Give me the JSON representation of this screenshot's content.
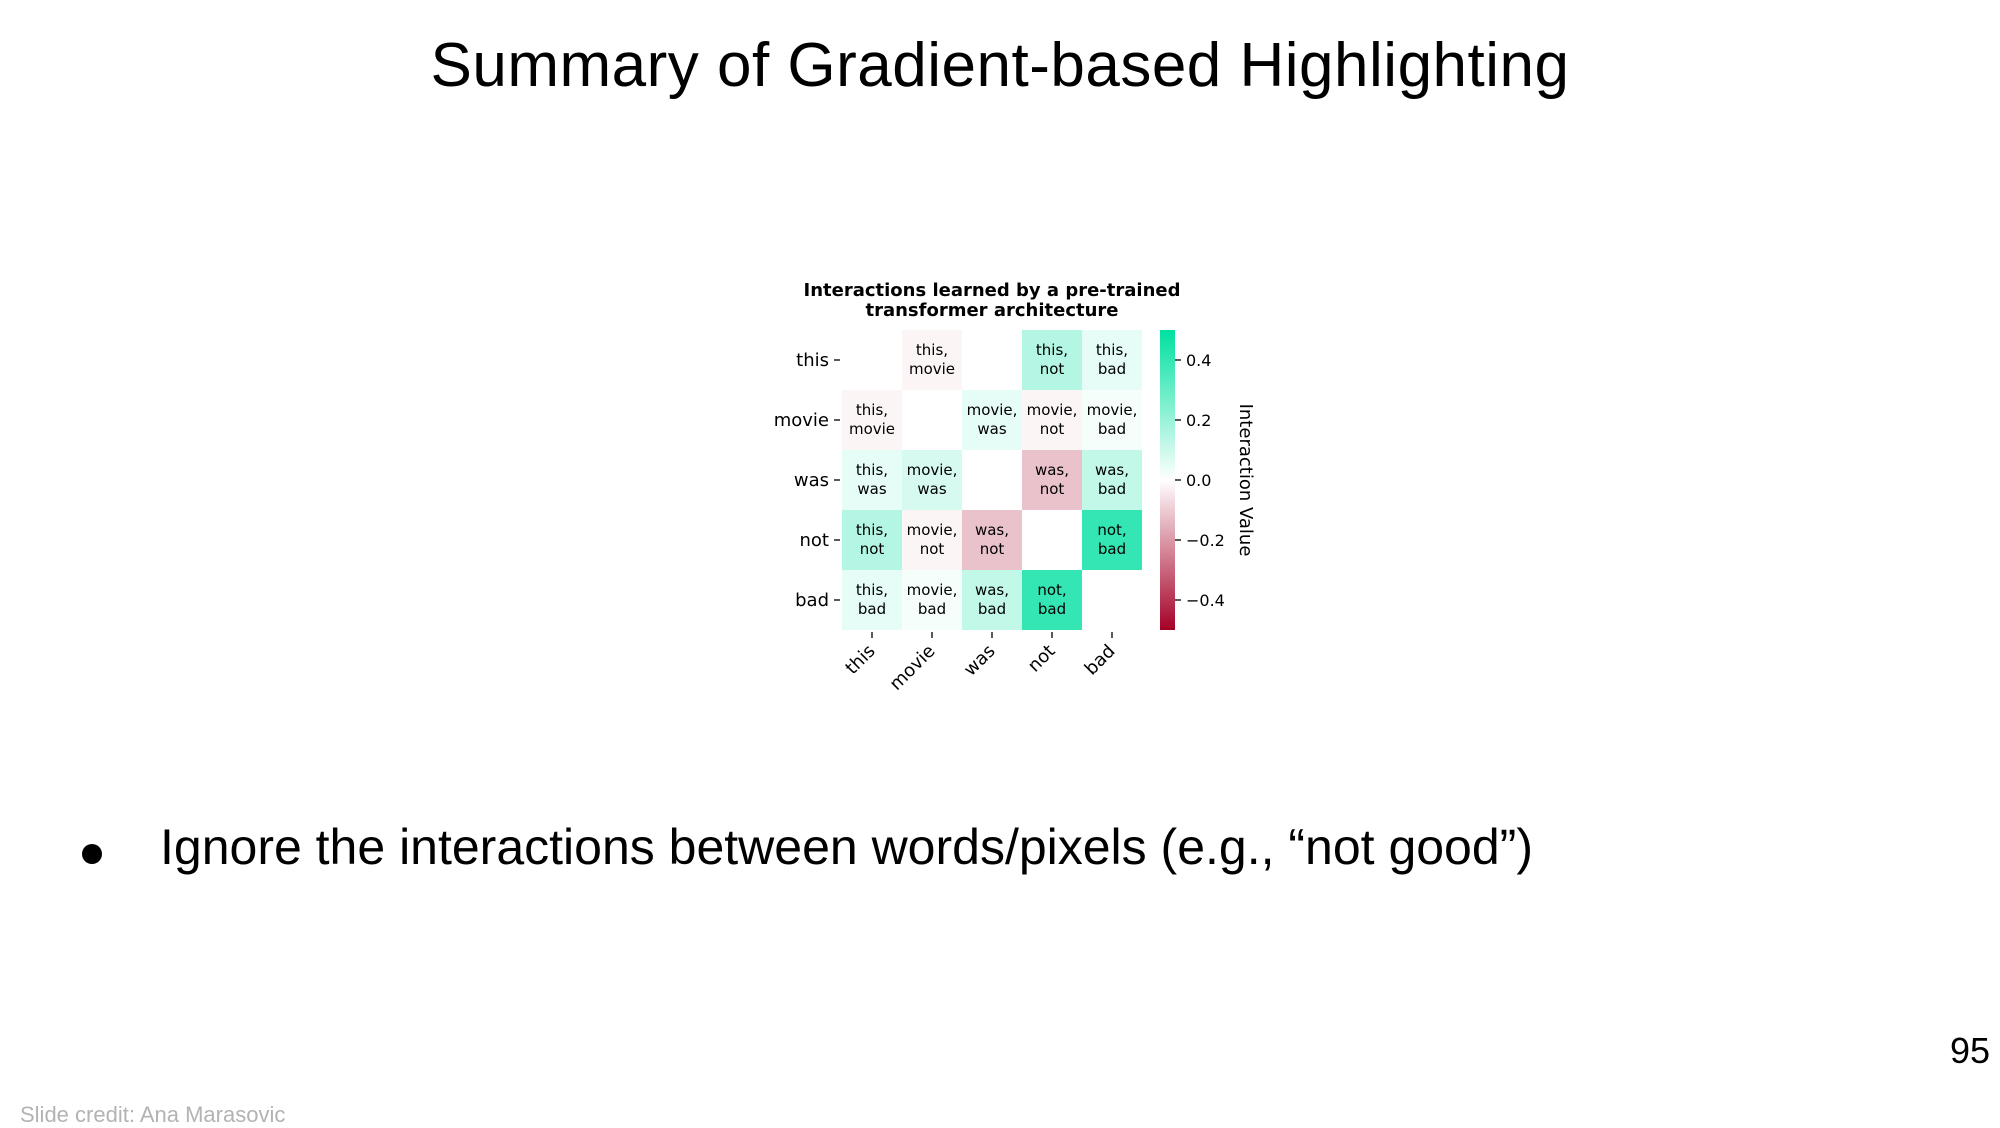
{
  "slide": {
    "title": "Summary of Gradient-based Highlighting",
    "bullet": "Ignore the interactions between words/pixels (e.g., “not good”)",
    "page_number": "95",
    "credit": "Slide credit: Ana Marasovic"
  },
  "chart_data": {
    "type": "heatmap",
    "title": "Interactions learned by a pre-trained transformer architecture",
    "title_lines": [
      "Interactions learned by a pre-trained",
      "transformer architecture"
    ],
    "rows": [
      "this",
      "movie",
      "was",
      "not",
      "bad"
    ],
    "columns": [
      "this",
      "movie",
      "was",
      "not",
      "bad"
    ],
    "values": [
      [
        null,
        -0.02,
        null,
        0.15,
        0.05
      ],
      [
        -0.02,
        null,
        0.05,
        -0.02,
        0.02
      ],
      [
        0.05,
        0.08,
        null,
        -0.12,
        0.12
      ],
      [
        0.15,
        -0.02,
        -0.12,
        null,
        0.4
      ],
      [
        0.05,
        0.02,
        0.12,
        0.4,
        null
      ]
    ],
    "cell_labels": [
      [
        [
          "",
          ""
        ],
        [
          "this,",
          "movie"
        ],
        [
          "",
          ""
        ],
        [
          "this,",
          "not"
        ],
        [
          "this,",
          "bad"
        ]
      ],
      [
        [
          "this,",
          "movie"
        ],
        [
          "",
          ""
        ],
        [
          "movie,",
          "was"
        ],
        [
          "movie,",
          "not"
        ],
        [
          "movie,",
          "bad"
        ]
      ],
      [
        [
          "this,",
          "was"
        ],
        [
          "movie,",
          "was"
        ],
        [
          "",
          ""
        ],
        [
          "was,",
          "not"
        ],
        [
          "was,",
          "bad"
        ]
      ],
      [
        [
          "this,",
          "not"
        ],
        [
          "movie,",
          "not"
        ],
        [
          "was,",
          "not"
        ],
        [
          "",
          ""
        ],
        [
          "not,",
          "bad"
        ]
      ],
      [
        [
          "this,",
          "bad"
        ],
        [
          "movie,",
          "bad"
        ],
        [
          "was,",
          "bad"
        ],
        [
          "not,",
          "bad"
        ],
        [
          "",
          ""
        ]
      ]
    ],
    "colorbar": {
      "label": "Interaction Value",
      "range": [
        -0.5,
        0.5
      ],
      "ticks": [
        0.4,
        0.2,
        0.0,
        -0.2,
        -0.4
      ],
      "tick_labels": [
        "0.4",
        "0.2",
        "0.0",
        "−0.2",
        "−0.4"
      ],
      "colors": {
        "positive": "#00e0a0",
        "neutral": "#ffffff",
        "negative": "#a50026"
      }
    }
  }
}
